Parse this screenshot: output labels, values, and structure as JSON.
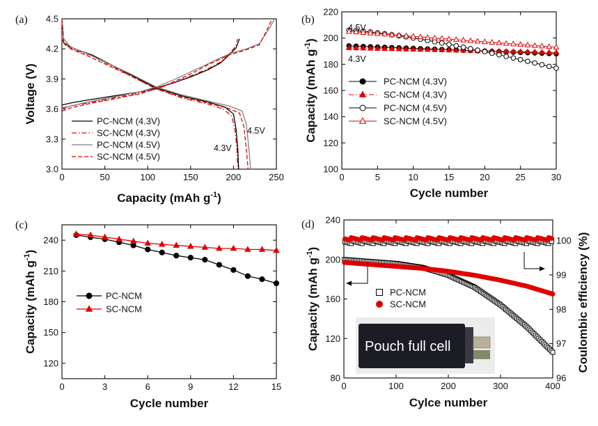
{
  "chart_data": [
    {
      "panel": "(a)",
      "type": "line",
      "xlabel": "Capacity (mAh g",
      "xlabel_sup": "-1",
      "xlabel_suffix": ")",
      "ylabel": "Voltage (V)",
      "xlim": [
        0,
        250
      ],
      "ylim": [
        3.0,
        4.5
      ],
      "xticks": [
        "0",
        "50",
        "100",
        "150",
        "200",
        "250"
      ],
      "yticks": [
        "3.0",
        "3.3",
        "3.6",
        "3.9",
        "4.2",
        "4.5"
      ],
      "legend_position": "lower-left",
      "annotations": [
        "4.5V",
        "4.3V"
      ],
      "series": [
        {
          "name": "PC-NCM (4.3V)",
          "color": "#000000",
          "dash": "solid",
          "charge": [
            [
              0,
              3.64
            ],
            [
              10,
              3.66
            ],
            [
              30,
              3.69
            ],
            [
              60,
              3.73
            ],
            [
              90,
              3.77
            ],
            [
              110,
              3.81
            ],
            [
              130,
              3.86
            ],
            [
              150,
              3.92
            ],
            [
              170,
              3.99
            ],
            [
              185,
              4.06
            ],
            [
              195,
              4.14
            ],
            [
              203,
              4.21
            ],
            [
              207,
              4.3
            ]
          ],
          "discharge": [
            [
              0,
              4.3
            ],
            [
              3,
              4.25
            ],
            [
              15,
              4.2
            ],
            [
              35,
              4.14
            ],
            [
              60,
              4.03
            ],
            [
              85,
              3.92
            ],
            [
              110,
              3.81
            ],
            [
              140,
              3.73
            ],
            [
              170,
              3.67
            ],
            [
              190,
              3.62
            ],
            [
              200,
              3.55
            ],
            [
              203,
              3.4
            ],
            [
              205,
              3.2
            ],
            [
              206,
              3.0
            ]
          ]
        },
        {
          "name": "SC-NCM (4.3V)",
          "color": "#e00000",
          "dash": "dashdot",
          "charge": [
            [
              0,
              3.61
            ],
            [
              10,
              3.63
            ],
            [
              30,
              3.66
            ],
            [
              60,
              3.71
            ],
            [
              90,
              3.76
            ],
            [
              110,
              3.8
            ],
            [
              130,
              3.86
            ],
            [
              150,
              3.93
            ],
            [
              170,
              4.0
            ],
            [
              185,
              4.07
            ],
            [
              195,
              4.15
            ],
            [
              202,
              4.22
            ],
            [
              205,
              4.3
            ]
          ],
          "discharge": [
            [
              0,
              4.3
            ],
            [
              3,
              4.24
            ],
            [
              15,
              4.19
            ],
            [
              35,
              4.13
            ],
            [
              60,
              4.02
            ],
            [
              85,
              3.91
            ],
            [
              110,
              3.8
            ],
            [
              140,
              3.71
            ],
            [
              170,
              3.65
            ],
            [
              188,
              3.6
            ],
            [
              198,
              3.53
            ],
            [
              202,
              3.38
            ],
            [
              204,
              3.2
            ],
            [
              205,
              3.0
            ]
          ]
        },
        {
          "name": "PC-NCM (4.5V)",
          "color": "#808080",
          "dash": "solid",
          "charge": [
            [
              0,
              3.6
            ],
            [
              10,
              3.63
            ],
            [
              30,
              3.67
            ],
            [
              60,
              3.72
            ],
            [
              90,
              3.77
            ],
            [
              110,
              3.82
            ],
            [
              130,
              3.89
            ],
            [
              150,
              3.97
            ],
            [
              170,
              4.05
            ],
            [
              195,
              4.15
            ],
            [
              215,
              4.2
            ],
            [
              230,
              4.25
            ],
            [
              240,
              4.38
            ],
            [
              248,
              4.5
            ]
          ],
          "discharge": [
            [
              0,
              4.5
            ],
            [
              2,
              4.3
            ],
            [
              10,
              4.22
            ],
            [
              30,
              4.15
            ],
            [
              55,
              4.05
            ],
            [
              80,
              3.95
            ],
            [
              110,
              3.82
            ],
            [
              140,
              3.74
            ],
            [
              170,
              3.68
            ],
            [
              195,
              3.63
            ],
            [
              210,
              3.58
            ],
            [
              215,
              3.45
            ],
            [
              218,
              3.2
            ],
            [
              220,
              3.0
            ]
          ]
        },
        {
          "name": "SC-NCM (4.5V)",
          "color": "#e00000",
          "dash": "dashed",
          "charge": [
            [
              0,
              3.58
            ],
            [
              10,
              3.61
            ],
            [
              30,
              3.65
            ],
            [
              60,
              3.7
            ],
            [
              90,
              3.75
            ],
            [
              110,
              3.8
            ],
            [
              130,
              3.87
            ],
            [
              150,
              3.95
            ],
            [
              170,
              4.04
            ],
            [
              195,
              4.14
            ],
            [
              215,
              4.19
            ],
            [
              230,
              4.24
            ],
            [
              238,
              4.37
            ],
            [
              245,
              4.5
            ]
          ],
          "discharge": [
            [
              0,
              4.5
            ],
            [
              2,
              4.28
            ],
            [
              10,
              4.2
            ],
            [
              30,
              4.13
            ],
            [
              55,
              4.03
            ],
            [
              80,
              3.93
            ],
            [
              110,
              3.8
            ],
            [
              140,
              3.72
            ],
            [
              170,
              3.66
            ],
            [
              193,
              3.61
            ],
            [
              207,
              3.56
            ],
            [
              212,
              3.43
            ],
            [
              215,
              3.2
            ],
            [
              217,
              3.0
            ]
          ]
        }
      ]
    },
    {
      "panel": "(b)",
      "type": "scatter",
      "xlabel": "Cycle number",
      "ylabel": "Capacity (mAh g",
      "ylabel_sup": "-1",
      "ylabel_suffix": ")",
      "xlim": [
        0,
        30
      ],
      "ylim": [
        100,
        220
      ],
      "xticks": [
        "0",
        "5",
        "10",
        "15",
        "20",
        "25",
        "30"
      ],
      "yticks": [
        "100",
        "120",
        "140",
        "160",
        "180",
        "200",
        "220"
      ],
      "legend_position": "center-left",
      "annotations": [
        "4.5V",
        "4.3V"
      ],
      "series": [
        {
          "name": "PC-NCM (4.3V)",
          "color": "#000000",
          "marker": "circle-filled",
          "dash": "solid",
          "start": 194,
          "end": 188
        },
        {
          "name": "SC-NCM (4.3V)",
          "color": "#e00000",
          "marker": "triangle-filled",
          "dash": "dashdot",
          "start": 192.5,
          "end": 189
        },
        {
          "name": "PC-NCM (4.5V)",
          "color": "#000000",
          "marker": "circle-open",
          "dash": "solid",
          "start": 206,
          "end": 177
        },
        {
          "name": "SC-NCM (4.5V)",
          "color": "#e00000",
          "marker": "triangle-open",
          "dash": "solid",
          "start": 205,
          "end": 193
        }
      ]
    },
    {
      "panel": "(c)",
      "type": "line",
      "xlabel": "Cycle number",
      "ylabel": "Capacity (mAh g",
      "ylabel_sup": "-1",
      "ylabel_suffix": ")",
      "xlim": [
        0,
        15
      ],
      "ylim": [
        105,
        255
      ],
      "xticks": [
        "0",
        "3",
        "6",
        "9",
        "12",
        "15"
      ],
      "xtick_values": [
        0,
        3,
        6,
        9,
        12,
        15
      ],
      "yticks": [
        "120",
        "150",
        "180",
        "210",
        "240"
      ],
      "ytick_values": [
        120,
        150,
        180,
        210,
        240
      ],
      "legend_position": "center-left",
      "x": [
        1,
        2,
        3,
        4,
        5,
        6,
        7,
        8,
        9,
        10,
        11,
        12,
        13,
        14,
        15
      ],
      "series": [
        {
          "name": "PC-NCM",
          "color": "#000000",
          "marker": "circle-filled",
          "values": [
            245,
            243,
            241,
            238,
            235,
            231,
            228,
            225,
            223,
            221,
            216,
            211,
            205,
            202,
            198
          ]
        },
        {
          "name": "SC-NCM",
          "color": "#e00000",
          "marker": "triangle-filled",
          "values": [
            246,
            245,
            243,
            241,
            239,
            237,
            236,
            235,
            234,
            233,
            232,
            232,
            231,
            231,
            230
          ]
        }
      ]
    },
    {
      "panel": "(d)",
      "type": "scatter",
      "xlabel": "Cylce number",
      "ylabel": "Capacity (mAh g",
      "ylabel_sup": "-1",
      "ylabel_suffix": ")",
      "y2label": "Coulombic efficiency (%)",
      "xlim": [
        0,
        400
      ],
      "ylim": [
        80,
        240
      ],
      "y2lim": [
        96,
        100.6
      ],
      "xticks": [
        "0",
        "100",
        "200",
        "300",
        "400"
      ],
      "yticks": [
        "80",
        "120",
        "160",
        "200",
        "240"
      ],
      "y2ticks": [
        "96",
        "97",
        "98",
        "99",
        "100"
      ],
      "legend_position": "center-left",
      "inset_label": "Pouch full cell",
      "series": [
        {
          "name": "PC-NCM",
          "color": "#000000",
          "marker": "square-open",
          "axis": "left",
          "points": [
            [
              0,
              200
            ],
            [
              50,
              198
            ],
            [
              100,
              196
            ],
            [
              150,
              192
            ],
            [
              200,
              184
            ],
            [
              250,
              172
            ],
            [
              300,
              154
            ],
            [
              350,
              132
            ],
            [
              400,
              106
            ]
          ]
        },
        {
          "name": "SC-NCM",
          "color": "#e00000",
          "marker": "circle-filled",
          "axis": "left",
          "points": [
            [
              0,
              197
            ],
            [
              50,
              195
            ],
            [
              100,
              193
            ],
            [
              150,
              191
            ],
            [
              200,
              188
            ],
            [
              250,
              184
            ],
            [
              300,
              179
            ],
            [
              350,
              173
            ],
            [
              400,
              165
            ]
          ]
        },
        {
          "name": "PC-NCM efficiency",
          "color": "#000000",
          "marker": "square-open",
          "axis": "right",
          "mean": 99.95
        },
        {
          "name": "SC-NCM efficiency",
          "color": "#e00000",
          "marker": "circle-filled",
          "axis": "right",
          "mean": 100.05
        }
      ]
    }
  ]
}
